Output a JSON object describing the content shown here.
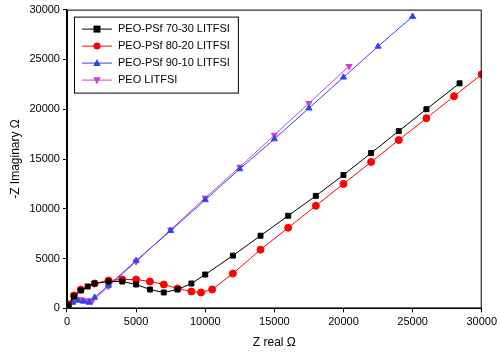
{
  "chart_data": {
    "type": "scatter",
    "x_label": "Z real Ω",
    "y_label": "-Z Imaginary Ω",
    "xlim": [
      0,
      30000
    ],
    "ylim": [
      0,
      30000
    ],
    "xticks": [
      0,
      5000,
      10000,
      15000,
      20000,
      25000,
      30000
    ],
    "yticks": [
      0,
      5000,
      10000,
      15000,
      20000,
      25000,
      30000
    ],
    "grid": false,
    "legend": "upper left",
    "series": [
      {
        "name": "PEO-PSf 70-30 LITFSI",
        "color": "#000000",
        "marker": "square",
        "line_style": "solid",
        "x": [
          100,
          500,
          1000,
          1500,
          2000,
          3000,
          4000,
          5000,
          6000,
          7000,
          8000,
          9000,
          10000,
          12000,
          14000,
          16000,
          18000,
          20000,
          22000,
          24000,
          26000,
          28400
        ],
        "values": [
          300,
          1200,
          1800,
          2200,
          2500,
          2700,
          2700,
          2400,
          1900,
          1600,
          1900,
          2500,
          3400,
          5300,
          7300,
          9300,
          11300,
          13400,
          15600,
          17800,
          20000,
          22600
        ]
      },
      {
        "name": "PEO-PSf 80-20 LITFSI",
        "color": "#ff0000",
        "marker": "circle",
        "line_style": "solid",
        "x": [
          100,
          500,
          1000,
          2000,
          3000,
          4000,
          5000,
          6000,
          7000,
          8000,
          9000,
          9700,
          10500,
          12000,
          14000,
          16000,
          18000,
          20000,
          22000,
          24000,
          26000,
          28000,
          30000
        ],
        "values": [
          400,
          1300,
          1900,
          2500,
          2800,
          2900,
          2900,
          2700,
          2400,
          2000,
          1700,
          1600,
          1900,
          3500,
          5900,
          8100,
          10300,
          12500,
          14700,
          16900,
          19100,
          21300,
          23500
        ]
      },
      {
        "name": "PEO-PSf 90-10 LITFSI",
        "color": "#3344ee",
        "marker": "triangle",
        "line_style": "solid",
        "x": [
          100,
          400,
          800,
          1200,
          1600,
          2000,
          3000,
          5000,
          7500,
          10000,
          12500,
          15000,
          17500,
          20000,
          22500,
          25000
        ],
        "values": [
          200,
          600,
          800,
          700,
          600,
          1100,
          2300,
          4800,
          7800,
          10900,
          14000,
          17000,
          20100,
          23200,
          26300,
          29300
        ]
      },
      {
        "name": "PEO LITFSI",
        "color": "#cc44cc",
        "marker": "triangle_down",
        "line_style": "solid",
        "x": [
          100,
          500,
          1000,
          1500,
          1800,
          3000,
          5000,
          7500,
          10000,
          12500,
          15000,
          17500,
          20400
        ],
        "values": [
          300,
          700,
          900,
          800,
          700,
          2200,
          4700,
          7900,
          11100,
          14200,
          17400,
          20600,
          24300
        ]
      }
    ]
  }
}
